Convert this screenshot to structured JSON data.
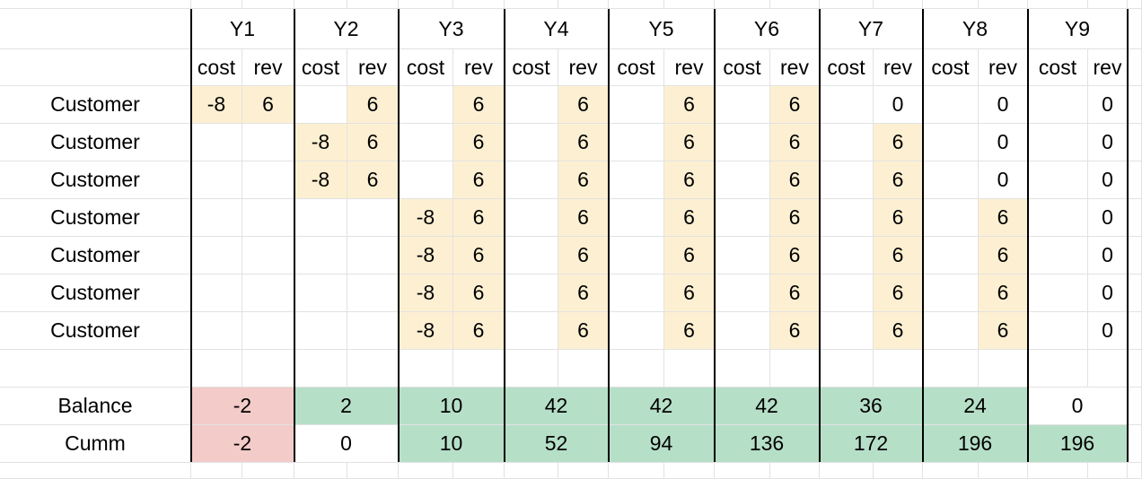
{
  "years": [
    "Y1",
    "Y2",
    "Y3",
    "Y4",
    "Y5",
    "Y6",
    "Y7",
    "Y8",
    "Y9"
  ],
  "subheaders": {
    "cost": "cost",
    "rev": "rev"
  },
  "customer_rows": [
    {
      "label": "Customer",
      "cells": [
        [
          "-8",
          "6"
        ],
        [
          "",
          "6"
        ],
        [
          "",
          "6"
        ],
        [
          "",
          "6"
        ],
        [
          "",
          "6"
        ],
        [
          "",
          "6"
        ],
        [
          "",
          "0"
        ],
        [
          "",
          "0"
        ],
        [
          "",
          "0"
        ]
      ]
    },
    {
      "label": "Customer",
      "cells": [
        [
          "",
          ""
        ],
        [
          "-8",
          "6"
        ],
        [
          "",
          "6"
        ],
        [
          "",
          "6"
        ],
        [
          "",
          "6"
        ],
        [
          "",
          "6"
        ],
        [
          "",
          "6"
        ],
        [
          "",
          "0"
        ],
        [
          "",
          "0"
        ]
      ]
    },
    {
      "label": "Customer",
      "cells": [
        [
          "",
          ""
        ],
        [
          "-8",
          "6"
        ],
        [
          "",
          "6"
        ],
        [
          "",
          "6"
        ],
        [
          "",
          "6"
        ],
        [
          "",
          "6"
        ],
        [
          "",
          "6"
        ],
        [
          "",
          "0"
        ],
        [
          "",
          "0"
        ]
      ]
    },
    {
      "label": "Customer",
      "cells": [
        [
          "",
          ""
        ],
        [
          "",
          ""
        ],
        [
          "-8",
          "6"
        ],
        [
          "",
          "6"
        ],
        [
          "",
          "6"
        ],
        [
          "",
          "6"
        ],
        [
          "",
          "6"
        ],
        [
          "",
          "6"
        ],
        [
          "",
          "0"
        ]
      ]
    },
    {
      "label": "Customer",
      "cells": [
        [
          "",
          ""
        ],
        [
          "",
          ""
        ],
        [
          "-8",
          "6"
        ],
        [
          "",
          "6"
        ],
        [
          "",
          "6"
        ],
        [
          "",
          "6"
        ],
        [
          "",
          "6"
        ],
        [
          "",
          "6"
        ],
        [
          "",
          "0"
        ]
      ]
    },
    {
      "label": "Customer",
      "cells": [
        [
          "",
          ""
        ],
        [
          "",
          ""
        ],
        [
          "-8",
          "6"
        ],
        [
          "",
          "6"
        ],
        [
          "",
          "6"
        ],
        [
          "",
          "6"
        ],
        [
          "",
          "6"
        ],
        [
          "",
          "6"
        ],
        [
          "",
          "0"
        ]
      ]
    },
    {
      "label": "Customer",
      "cells": [
        [
          "",
          ""
        ],
        [
          "",
          ""
        ],
        [
          "-8",
          "6"
        ],
        [
          "",
          "6"
        ],
        [
          "",
          "6"
        ],
        [
          "",
          "6"
        ],
        [
          "",
          "6"
        ],
        [
          "",
          "6"
        ],
        [
          "",
          "0"
        ]
      ]
    }
  ],
  "balance": {
    "label": "Balance",
    "values": [
      "-2",
      "2",
      "10",
      "42",
      "42",
      "42",
      "36",
      "24",
      "0"
    ]
  },
  "cumm": {
    "label": "Cumm",
    "values": [
      "-2",
      "0",
      "10",
      "52",
      "94",
      "136",
      "172",
      "196",
      "196"
    ]
  },
  "colors": {
    "highlight": "#fdf0d2",
    "negative": "#f3cbc8",
    "positive": "#b6dfc8",
    "gridline": "#e2e2e2"
  }
}
